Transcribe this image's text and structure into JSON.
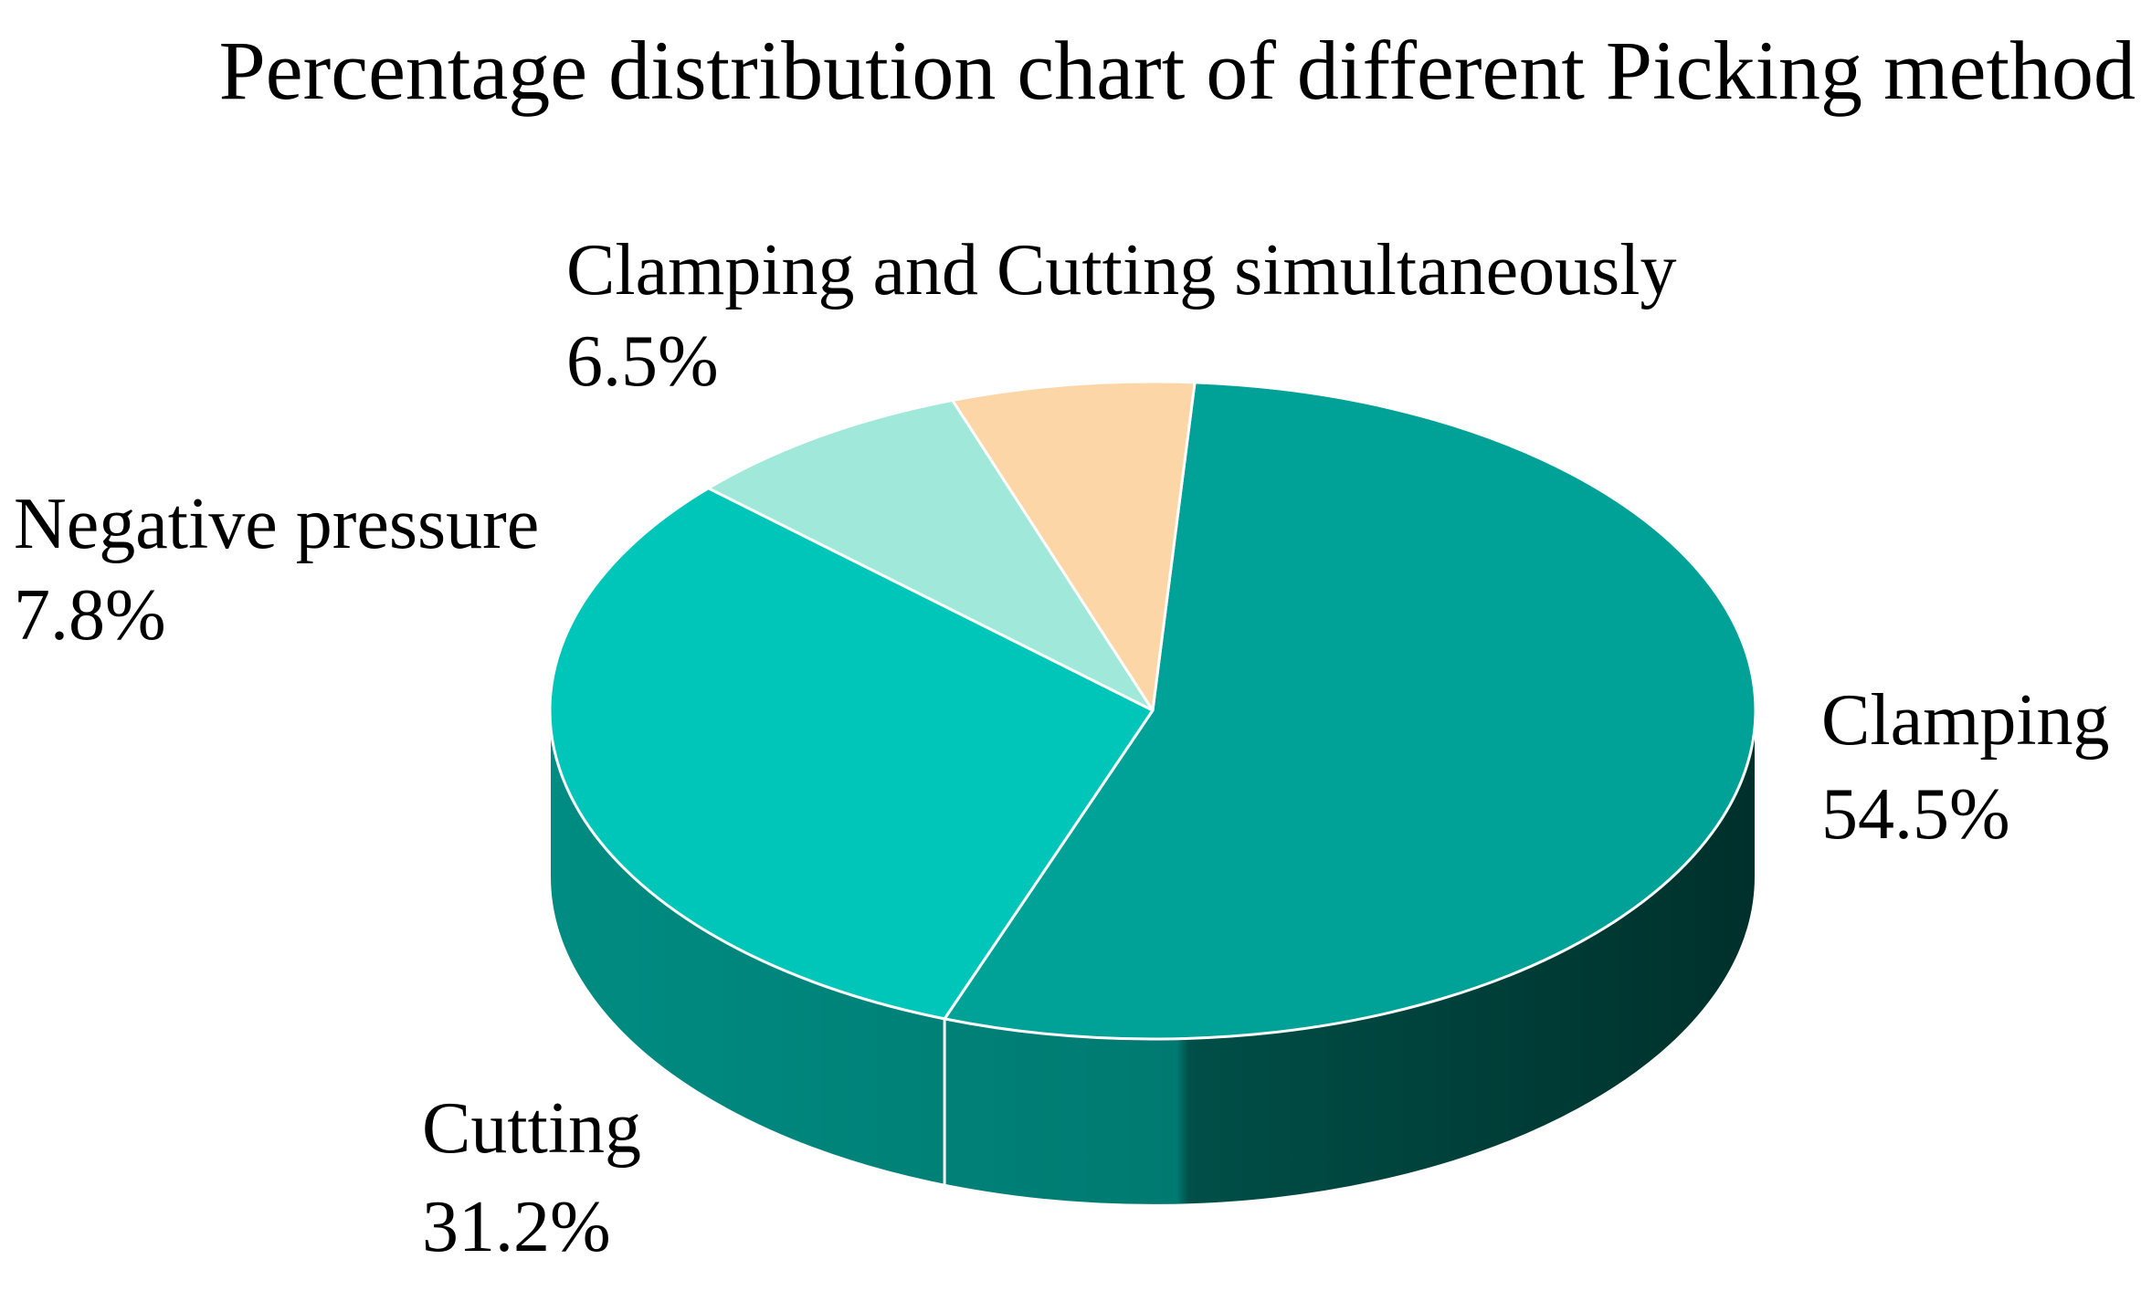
{
  "chart_data": {
    "type": "pie",
    "title": "Percentage distribution chart of different Picking method",
    "three_d": true,
    "slices": [
      {
        "label": "Clamping",
        "value": 54.5,
        "value_label": "54.5%",
        "color": "#00A196",
        "side_color": "#00423C"
      },
      {
        "label": "Cutting",
        "value": 31.2,
        "value_label": "31.2%",
        "color": "#00C6BA",
        "side_color": "#00968B"
      },
      {
        "label": "Negative pressure",
        "value": 7.8,
        "value_label": "7.8%",
        "color": "#A0E8DA",
        "side_color": "#7FCFC0"
      },
      {
        "label": "Clamping and Cutting simultaneously",
        "value": 6.5,
        "value_label": "6.5%",
        "color": "#FDD6A8",
        "side_color": "#E0B88C"
      }
    ]
  }
}
